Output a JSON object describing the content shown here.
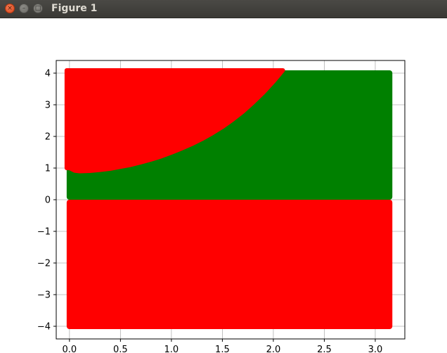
{
  "window": {
    "title": "Figure 1",
    "close_icon": "×",
    "minimize_icon": "–",
    "maximize_icon": "□"
  },
  "chart_data": {
    "type": "area",
    "title": "",
    "xlabel": "",
    "ylabel": "",
    "xlim": [
      -0.13,
      3.29
    ],
    "ylim": [
      -4.4,
      4.4
    ],
    "x_ticks": [
      0.0,
      0.5,
      1.0,
      1.5,
      2.0,
      2.5,
      3.0
    ],
    "x_tick_labels": [
      "0.0",
      "0.5",
      "1.0",
      "1.5",
      "2.0",
      "2.5",
      "3.0"
    ],
    "y_ticks": [
      -4,
      -3,
      -2,
      -1,
      0,
      1,
      2,
      3,
      4
    ],
    "y_tick_labels": [
      "−4",
      "−3",
      "−2",
      "−1",
      "0",
      "1",
      "2",
      "3",
      "4"
    ],
    "grid": true,
    "point_region": {
      "x": [
        0.0,
        3.14
      ],
      "y": [
        -4.0,
        4.0
      ]
    },
    "series": [
      {
        "color": "#ff0000",
        "region": "y < 0"
      },
      {
        "color": "#008000",
        "region": "y > 0 and y < boundary"
      },
      {
        "color": "#ff0000",
        "region": "y > boundary"
      }
    ],
    "boundary": {
      "x": [
        0.0,
        0.05,
        0.1,
        0.2,
        0.3,
        0.4,
        0.5,
        0.6,
        0.7,
        0.8,
        0.9,
        1.0,
        1.1,
        1.2,
        1.3,
        1.4,
        1.5,
        1.6,
        1.7,
        1.8,
        1.9,
        2.0,
        2.05,
        2.08
      ],
      "y": [
        1.0,
        0.92,
        0.9,
        0.91,
        0.94,
        0.98,
        1.04,
        1.1,
        1.18,
        1.27,
        1.37,
        1.49,
        1.62,
        1.76,
        1.92,
        2.1,
        2.3,
        2.53,
        2.78,
        3.07,
        3.38,
        3.73,
        3.92,
        4.04
      ]
    }
  }
}
